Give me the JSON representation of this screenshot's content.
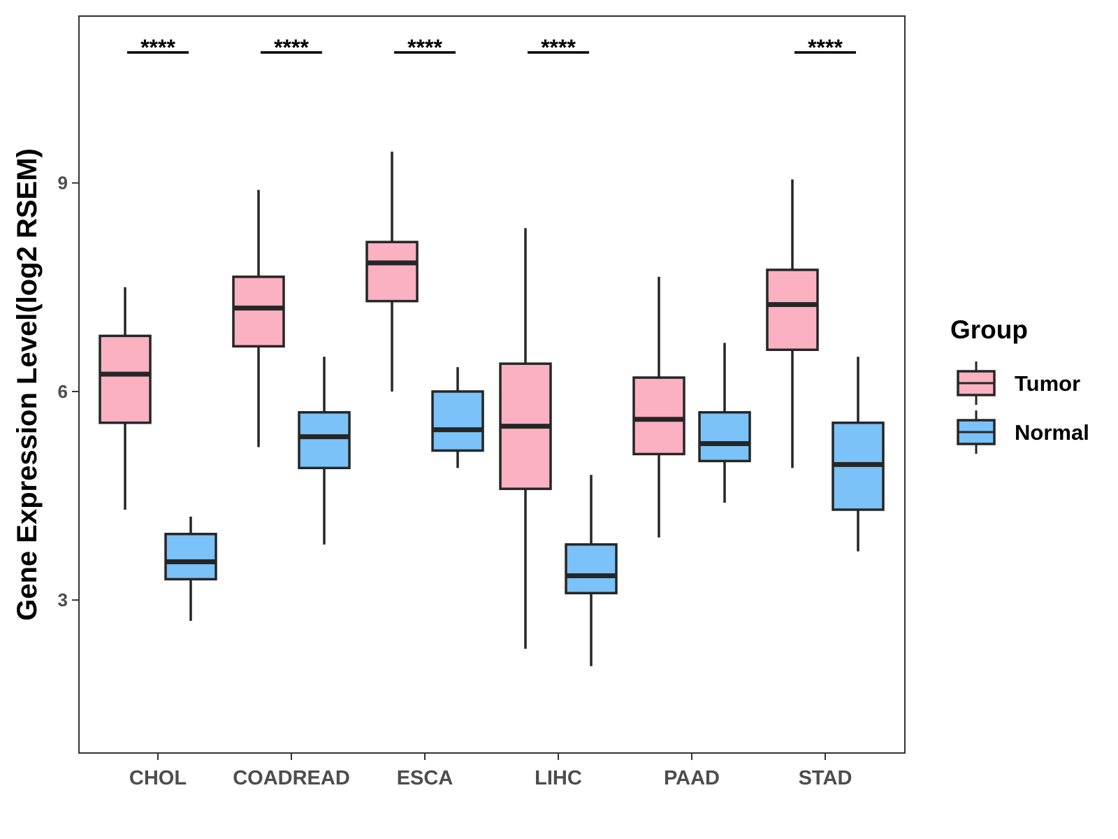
{
  "chart_data": {
    "type": "boxplot",
    "title": "",
    "xlabel": "",
    "ylabel": "Gene Expression Level(log2 RSEM)",
    "ylim": [
      0.8,
      11.4
    ],
    "yticks": [
      3,
      6,
      9
    ],
    "categories": [
      "CHOL",
      "COADREAD",
      "ESCA",
      "LIHC",
      "PAAD",
      "STAD"
    ],
    "significance": [
      "****",
      "****",
      "****",
      "****",
      "",
      "****"
    ],
    "legend": {
      "title": "Group",
      "position": "right"
    },
    "series": [
      {
        "name": "Tumor",
        "color": "#FBB1C2",
        "boxes": [
          {
            "min": 4.3,
            "q1": 5.55,
            "median": 6.25,
            "q3": 6.8,
            "max": 7.5
          },
          {
            "min": 5.2,
            "q1": 6.65,
            "median": 7.2,
            "q3": 7.65,
            "max": 8.9
          },
          {
            "min": 6.0,
            "q1": 7.3,
            "median": 7.85,
            "q3": 8.15,
            "max": 9.45
          },
          {
            "min": 2.3,
            "q1": 4.6,
            "median": 5.5,
            "q3": 6.4,
            "max": 8.35
          },
          {
            "min": 3.9,
            "q1": 5.1,
            "median": 5.6,
            "q3": 6.2,
            "max": 7.65
          },
          {
            "min": 4.9,
            "q1": 6.6,
            "median": 7.25,
            "q3": 7.75,
            "max": 9.05
          }
        ]
      },
      {
        "name": "Normal",
        "color": "#7AC2F7",
        "boxes": [
          {
            "min": 2.7,
            "q1": 3.3,
            "median": 3.55,
            "q3": 3.95,
            "max": 4.2
          },
          {
            "min": 3.8,
            "q1": 4.9,
            "median": 5.35,
            "q3": 5.7,
            "max": 6.5
          },
          {
            "min": 4.9,
            "q1": 5.15,
            "median": 5.45,
            "q3": 6.0,
            "max": 6.35
          },
          {
            "min": 2.05,
            "q1": 3.1,
            "median": 3.35,
            "q3": 3.8,
            "max": 4.8
          },
          {
            "min": 4.4,
            "q1": 5.0,
            "median": 5.25,
            "q3": 5.7,
            "max": 6.7
          },
          {
            "min": 3.7,
            "q1": 4.3,
            "median": 4.95,
            "q3": 5.55,
            "max": 6.5
          }
        ]
      }
    ]
  }
}
